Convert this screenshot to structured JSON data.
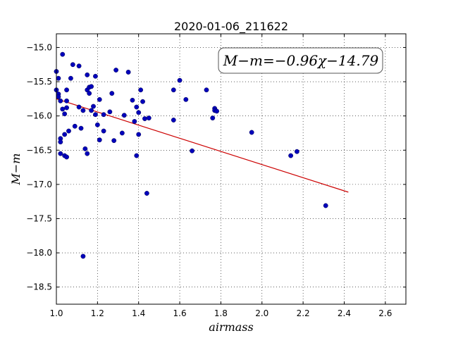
{
  "chart_data": {
    "type": "scatter",
    "title": "2020-01-06_211622",
    "xlabel": "airmass",
    "ylabel": "M−m",
    "annotation": "M−m=−0.96χ−14.79",
    "xlim": [
      1.0,
      2.7
    ],
    "ylim": [
      -18.75,
      -14.8
    ],
    "y_inverted": true,
    "grid": true,
    "xticks": [
      1.0,
      1.2,
      1.4,
      1.6,
      1.8,
      2.0,
      2.2,
      2.4,
      2.6
    ],
    "xtick_labels": [
      "1.0",
      "1.2",
      "1.4",
      "1.6",
      "1.8",
      "2.0",
      "2.2",
      "2.4",
      "2.6"
    ],
    "yticks": [
      -15.0,
      -15.5,
      -16.0,
      -16.5,
      -17.0,
      -17.5,
      -18.0,
      -18.5
    ],
    "ytick_labels": [
      "−15.0",
      "−15.5",
      "−16.0",
      "−16.5",
      "−17.0",
      "−17.5",
      "−18.0",
      "−18.5"
    ],
    "fit_line": {
      "slope": -0.96,
      "intercept": -14.79,
      "x_range": [
        1.0,
        2.42
      ],
      "color": "#cc0000"
    },
    "point_color": "#0000bb",
    "points": [
      [
        1.0,
        -15.35
      ],
      [
        1.0,
        -15.62
      ],
      [
        1.01,
        -15.45
      ],
      [
        1.01,
        -15.68
      ],
      [
        1.01,
        -15.72
      ],
      [
        1.02,
        -15.78
      ],
      [
        1.02,
        -16.33
      ],
      [
        1.02,
        -16.38
      ],
      [
        1.02,
        -16.55
      ],
      [
        1.03,
        -15.1
      ],
      [
        1.03,
        -15.9
      ],
      [
        1.04,
        -15.97
      ],
      [
        1.04,
        -16.27
      ],
      [
        1.04,
        -16.58
      ],
      [
        1.05,
        -16.6
      ],
      [
        1.05,
        -15.62
      ],
      [
        1.05,
        -15.78
      ],
      [
        1.05,
        -15.88
      ],
      [
        1.06,
        -16.22
      ],
      [
        1.07,
        -15.45
      ],
      [
        1.08,
        -15.25
      ],
      [
        1.09,
        -16.15
      ],
      [
        1.11,
        -15.27
      ],
      [
        1.11,
        -15.87
      ],
      [
        1.12,
        -16.18
      ],
      [
        1.13,
        -15.92
      ],
      [
        1.13,
        -18.05
      ],
      [
        1.14,
        -16.48
      ],
      [
        1.15,
        -15.4
      ],
      [
        1.15,
        -16.55
      ],
      [
        1.15,
        -15.62
      ],
      [
        1.16,
        -15.67
      ],
      [
        1.16,
        -15.58
      ],
      [
        1.17,
        -15.57
      ],
      [
        1.17,
        -15.92
      ],
      [
        1.18,
        -15.86
      ],
      [
        1.19,
        -15.98
      ],
      [
        1.19,
        -15.42
      ],
      [
        1.2,
        -16.13
      ],
      [
        1.21,
        -15.76
      ],
      [
        1.21,
        -16.35
      ],
      [
        1.23,
        -15.98
      ],
      [
        1.23,
        -16.22
      ],
      [
        1.26,
        -15.94
      ],
      [
        1.27,
        -15.67
      ],
      [
        1.28,
        -16.36
      ],
      [
        1.29,
        -15.33
      ],
      [
        1.32,
        -16.25
      ],
      [
        1.33,
        -15.99
      ],
      [
        1.35,
        -15.36
      ],
      [
        1.37,
        -15.77
      ],
      [
        1.38,
        -16.08
      ],
      [
        1.39,
        -16.58
      ],
      [
        1.39,
        -15.87
      ],
      [
        1.4,
        -15.95
      ],
      [
        1.4,
        -16.27
      ],
      [
        1.41,
        -15.62
      ],
      [
        1.42,
        -15.79
      ],
      [
        1.43,
        -16.04
      ],
      [
        1.44,
        -17.13
      ],
      [
        1.45,
        -16.03
      ],
      [
        1.57,
        -15.62
      ],
      [
        1.57,
        -16.06
      ],
      [
        1.6,
        -15.48
      ],
      [
        1.63,
        -15.76
      ],
      [
        1.66,
        -16.51
      ],
      [
        1.73,
        -15.62
      ],
      [
        1.76,
        -16.03
      ],
      [
        1.77,
        -15.89
      ],
      [
        1.77,
        -15.92
      ],
      [
        1.78,
        -15.93
      ],
      [
        1.95,
        -16.24
      ],
      [
        2.14,
        -16.58
      ],
      [
        2.17,
        -16.52
      ],
      [
        2.31,
        -17.31
      ]
    ]
  }
}
